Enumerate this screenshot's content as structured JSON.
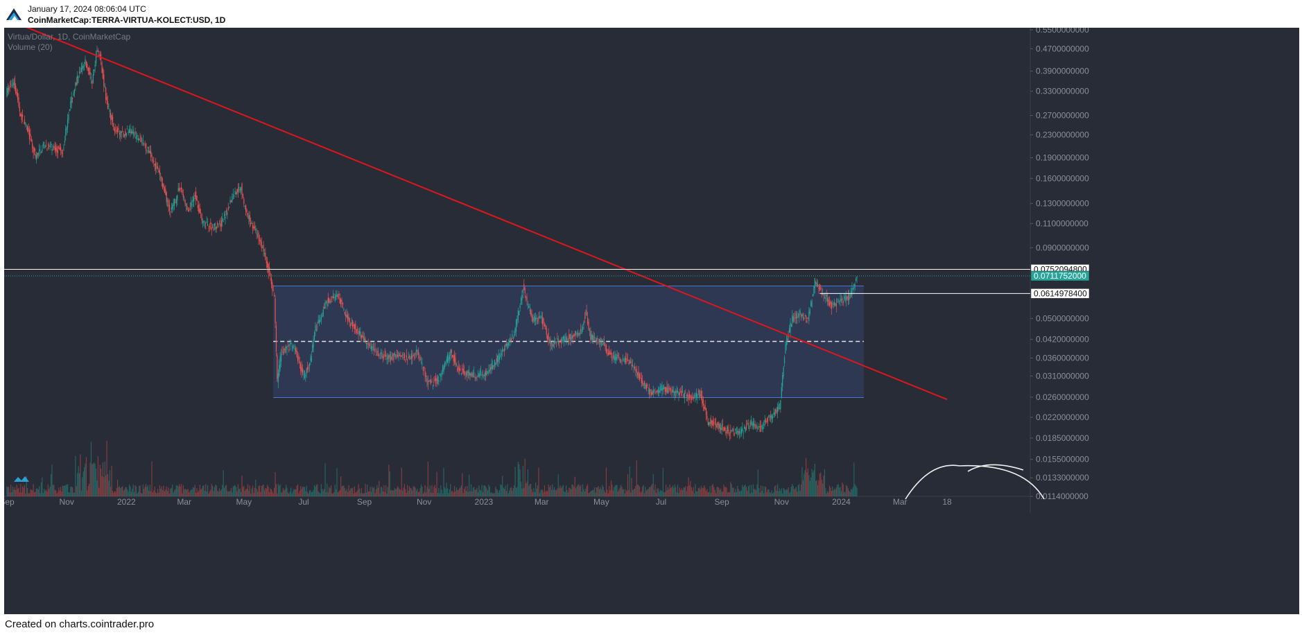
{
  "header": {
    "date": "January 17, 2024 08:06:04 UTC",
    "symbol": "CoinMarketCap:TERRA-VIRTUA-KOLECT:USD, 1D"
  },
  "footer": "Created on charts.cointrader.pro",
  "chart_data": {
    "type": "candlestick",
    "legend": {
      "series": "Virtua/Dollar, 1D, CoinMarketCap",
      "volume": "Volume (20)"
    },
    "y_scale": "log",
    "ylim": [
      0.0114,
      0.55
    ],
    "y_ticks": [
      "0.5500000000",
      "0.4700000000",
      "0.3900000000",
      "0.3300000000",
      "0.2700000000",
      "0.2300000000",
      "0.1900000000",
      "0.1600000000",
      "0.1300000000",
      "0.1100000000",
      "0.0900000000",
      "0.0500000000",
      "0.0420000000",
      "0.0360000000",
      "0.0310000000",
      "0.0260000000",
      "0.0220000000",
      "0.0185000000",
      "0.0155000000",
      "0.0133000000",
      "0.0114000000"
    ],
    "y_tick_values": [
      0.55,
      0.47,
      0.39,
      0.33,
      0.27,
      0.23,
      0.19,
      0.16,
      0.13,
      0.11,
      0.09,
      0.05,
      0.042,
      0.036,
      0.031,
      0.026,
      0.022,
      0.0185,
      0.0155,
      0.0133,
      0.0114
    ],
    "x_ticks": [
      "Sep",
      "Nov",
      "2022",
      "Mar",
      "May",
      "Jul",
      "Sep",
      "Nov",
      "2023",
      "Mar",
      "May",
      "Jul",
      "Sep",
      "Nov",
      "2024",
      "Mar",
      "18"
    ],
    "x_tick_dates": [
      "2021-09-01",
      "2021-11-01",
      "2022-01-01",
      "2022-03-01",
      "2022-05-01",
      "2022-07-01",
      "2022-09-01",
      "2022-11-01",
      "2023-01-01",
      "2023-03-01",
      "2023-05-01",
      "2023-07-01",
      "2023-09-01",
      "2023-11-01",
      "2024-01-01",
      "2024-03-01",
      "2024-04-18"
    ],
    "price_path": [
      [
        "2021-09-01",
        0.33
      ],
      [
        "2021-09-08",
        0.36
      ],
      [
        "2021-09-15",
        0.27
      ],
      [
        "2021-09-22",
        0.24
      ],
      [
        "2021-09-30",
        0.19
      ],
      [
        "2021-10-08",
        0.21
      ],
      [
        "2021-10-20",
        0.205
      ],
      [
        "2021-10-28",
        0.2
      ],
      [
        "2021-11-03",
        0.28
      ],
      [
        "2021-11-12",
        0.37
      ],
      [
        "2021-11-20",
        0.42
      ],
      [
        "2021-11-27",
        0.36
      ],
      [
        "2021-12-02",
        0.47
      ],
      [
        "2021-12-05",
        0.44
      ],
      [
        "2021-12-12",
        0.3
      ],
      [
        "2021-12-20",
        0.24
      ],
      [
        "2021-12-28",
        0.23
      ],
      [
        "2022-01-05",
        0.24
      ],
      [
        "2022-01-15",
        0.22
      ],
      [
        "2022-01-25",
        0.2
      ],
      [
        "2022-02-05",
        0.16
      ],
      [
        "2022-02-15",
        0.12
      ],
      [
        "2022-02-25",
        0.15
      ],
      [
        "2022-03-05",
        0.12
      ],
      [
        "2022-03-12",
        0.14
      ],
      [
        "2022-03-20",
        0.11
      ],
      [
        "2022-03-30",
        0.107
      ],
      [
        "2022-04-08",
        0.11
      ],
      [
        "2022-04-20",
        0.14
      ],
      [
        "2022-04-28",
        0.15
      ],
      [
        "2022-05-03",
        0.12
      ],
      [
        "2022-05-12",
        0.105
      ],
      [
        "2022-05-20",
        0.09
      ],
      [
        "2022-05-28",
        0.07
      ],
      [
        "2022-06-01",
        0.06
      ],
      [
        "2022-06-04",
        0.03
      ],
      [
        "2022-06-08",
        0.038
      ],
      [
        "2022-06-20",
        0.04
      ],
      [
        "2022-07-01",
        0.031
      ],
      [
        "2022-07-08",
        0.035
      ],
      [
        "2022-07-12",
        0.045
      ],
      [
        "2022-07-25",
        0.058
      ],
      [
        "2022-08-05",
        0.06
      ],
      [
        "2022-08-15",
        0.05
      ],
      [
        "2022-08-25",
        0.045
      ],
      [
        "2022-09-05",
        0.04
      ],
      [
        "2022-09-15",
        0.037
      ],
      [
        "2022-09-25",
        0.036
      ],
      [
        "2022-10-05",
        0.037
      ],
      [
        "2022-10-15",
        0.036
      ],
      [
        "2022-10-25",
        0.038
      ],
      [
        "2022-11-01",
        0.032
      ],
      [
        "2022-11-05",
        0.029
      ],
      [
        "2022-11-15",
        0.03
      ],
      [
        "2022-11-28",
        0.038
      ],
      [
        "2022-12-05",
        0.033
      ],
      [
        "2022-12-20",
        0.031
      ],
      [
        "2023-01-05",
        0.032
      ],
      [
        "2023-01-20",
        0.038
      ],
      [
        "2023-02-01",
        0.044
      ],
      [
        "2023-02-10",
        0.065
      ],
      [
        "2023-02-15",
        0.055
      ],
      [
        "2023-02-20",
        0.05
      ],
      [
        "2023-03-01",
        0.05
      ],
      [
        "2023-03-10",
        0.04
      ],
      [
        "2023-03-20",
        0.042
      ],
      [
        "2023-04-01",
        0.043
      ],
      [
        "2023-04-10",
        0.045
      ],
      [
        "2023-04-15",
        0.052
      ],
      [
        "2023-04-20",
        0.043
      ],
      [
        "2023-05-01",
        0.041
      ],
      [
        "2023-05-12",
        0.036
      ],
      [
        "2023-05-22",
        0.036
      ],
      [
        "2023-06-01",
        0.034
      ],
      [
        "2023-06-10",
        0.03
      ],
      [
        "2023-06-20",
        0.027
      ],
      [
        "2023-07-01",
        0.028
      ],
      [
        "2023-07-15",
        0.027
      ],
      [
        "2023-08-01",
        0.026
      ],
      [
        "2023-08-10",
        0.027
      ],
      [
        "2023-08-18",
        0.021
      ],
      [
        "2023-08-28",
        0.0205
      ],
      [
        "2023-09-10",
        0.0195
      ],
      [
        "2023-09-20",
        0.0195
      ],
      [
        "2023-10-01",
        0.021
      ],
      [
        "2023-10-10",
        0.02
      ],
      [
        "2023-10-20",
        0.022
      ],
      [
        "2023-10-30",
        0.024
      ],
      [
        "2023-11-05",
        0.04
      ],
      [
        "2023-11-12",
        0.05
      ],
      [
        "2023-11-20",
        0.052
      ],
      [
        "2023-11-28",
        0.049
      ],
      [
        "2023-12-05",
        0.068
      ],
      [
        "2023-12-15",
        0.06
      ],
      [
        "2023-12-22",
        0.055
      ],
      [
        "2024-01-01",
        0.058
      ],
      [
        "2024-01-10",
        0.06
      ],
      [
        "2024-01-17",
        0.0712
      ]
    ],
    "current_price": 0.0711752,
    "current_price_label": "0.0711752000",
    "horizontal_levels": [
      {
        "value": 0.07520948,
        "label": "0.0752094800"
      },
      {
        "value": 0.06149784,
        "label": "0.0614978400"
      }
    ],
    "range_box": {
      "from": "2022-05-31",
      "to": "2024-01-24",
      "top": 0.0655,
      "bottom": 0.0259,
      "mid": 0.0413
    },
    "trendline": {
      "from": [
        "2021-09-01",
        0.6
      ],
      "to": [
        "2024-04-18",
        0.0255
      ]
    },
    "colors": {
      "background": "#282c36",
      "up": "#26a69a",
      "down": "#ef5350",
      "trendline": "#e0161c",
      "box_fill": "#2f3b58",
      "box_edge": "#4a77d6",
      "price_tag": "#26a69a",
      "level_line": "#ffffff",
      "axis_text": "#8a8f99"
    }
  }
}
